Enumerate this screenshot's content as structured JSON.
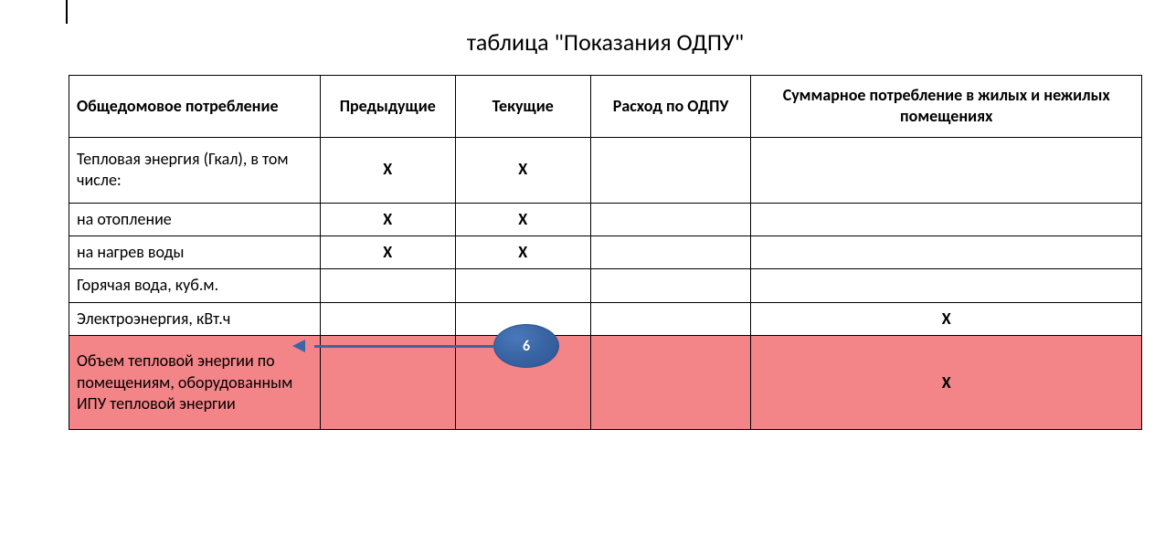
{
  "title": "таблица \"Показания ОДПУ\"",
  "columns": [
    "Общедомовое потребление",
    "Предыдущие",
    "Текущие",
    "Расход по ОДПУ",
    "Суммарное потребление в жилых и нежилых помещениях"
  ],
  "rows": [
    {
      "label": "Тепловая энергия (Гкал), в том числе:",
      "cells": [
        "X",
        "X",
        "",
        ""
      ],
      "tall": true
    },
    {
      "label": "на отопление",
      "cells": [
        "X",
        "X",
        "",
        ""
      ]
    },
    {
      "label": "на нагрев воды",
      "cells": [
        "X",
        "X",
        "",
        ""
      ]
    },
    {
      "label": "Горячая вода, куб.м.",
      "cells": [
        "",
        "",
        "",
        ""
      ]
    },
    {
      "label": "Электроэнергия, кВт.ч",
      "cells": [
        "",
        "",
        "",
        "X"
      ]
    },
    {
      "label": "Объем тепловой энергии по помещениям, оборудованным ИПУ тепловой энергии",
      "cells": [
        "",
        "",
        "",
        "X"
      ],
      "highlight": true
    }
  ],
  "callout": {
    "number": "6"
  },
  "colors": {
    "highlight_bg": "#f38487",
    "callout_fill": "#3a66a6",
    "callout_border": "#2d5490",
    "text": "#000000",
    "background": "#ffffff"
  }
}
